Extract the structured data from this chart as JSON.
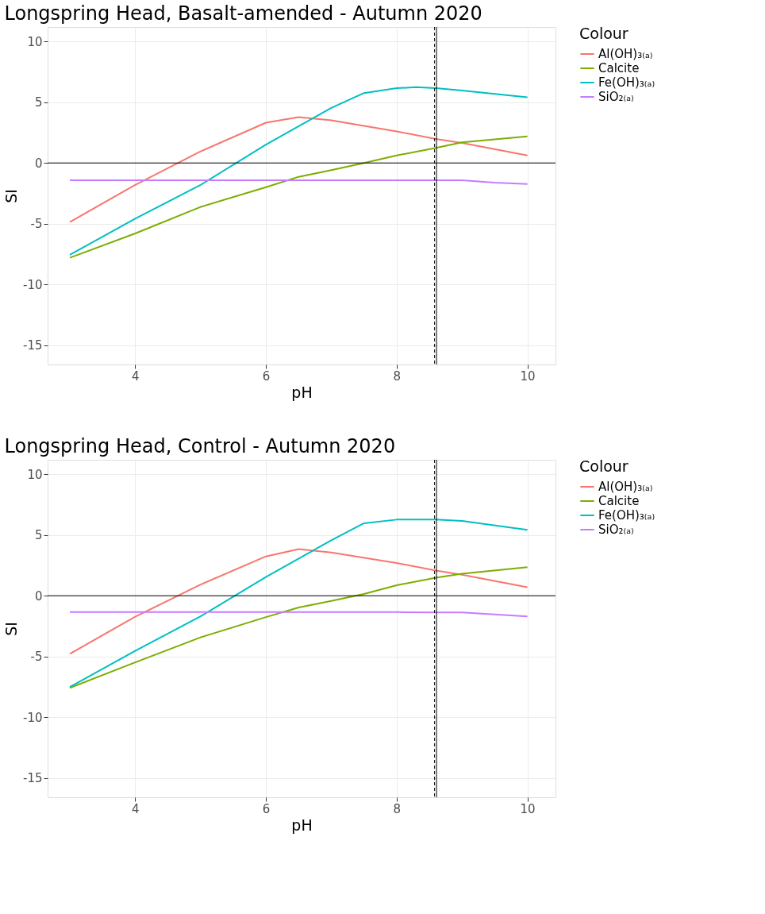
{
  "chart_data": [
    {
      "type": "line",
      "title": "Longspring Head, Basalt-amended - Autumn 2020",
      "xlabel": "pH",
      "ylabel": "SI",
      "legend_title": "Colour",
      "legend": "right",
      "grid": true,
      "line_style": "solid",
      "marker": "none",
      "xlim": [
        2.66,
        10.43
      ],
      "ylim": [
        -16.6,
        11.2
      ],
      "xticks": [
        4,
        6,
        8,
        10
      ],
      "yticks": [
        -15,
        -10,
        -5,
        0,
        5,
        10
      ],
      "series": [
        {
          "name": "Al(OH)₃₍ₐ₎",
          "color": "#f8766d",
          "x": [
            3,
            4,
            5,
            6,
            6.5,
            7,
            8,
            8.6,
            9,
            10
          ],
          "values": [
            -4.86,
            -1.81,
            0.95,
            3.32,
            3.78,
            3.51,
            2.6,
            1.97,
            1.65,
            0.62
          ]
        },
        {
          "name": "Calcite",
          "color": "#7cae00",
          "x": [
            3,
            4,
            5,
            6,
            6.5,
            7,
            7.5,
            8,
            8.6,
            9,
            10
          ],
          "values": [
            -7.81,
            -5.81,
            -3.62,
            -2.0,
            -1.14,
            -0.59,
            0,
            0.62,
            1.24,
            1.7,
            2.19
          ]
        },
        {
          "name": "Fe(OH)₃₍ₐ₎",
          "color": "#00bfc4",
          "x": [
            3,
            4,
            5,
            6,
            7,
            7.5,
            8,
            8.3,
            8.6,
            9,
            10
          ],
          "values": [
            -7.57,
            -4.59,
            -1.81,
            1.51,
            4.54,
            5.76,
            6.16,
            6.24,
            6.16,
            5.97,
            5.41
          ]
        },
        {
          "name": "SiO₂₍ₐ₎",
          "color": "#c77cff",
          "x": [
            3,
            9,
            9.5,
            10
          ],
          "values": [
            -1.43,
            -1.43,
            -1.62,
            -1.73
          ]
        }
      ],
      "ref_lines": [
        {
          "axis": "y",
          "value": 0,
          "color": "#000000",
          "line_style": "solid"
        },
        {
          "axis": "x",
          "value": 8.61,
          "color": "#000000",
          "line_style": "solid"
        },
        {
          "axis": "x",
          "value": 8.58,
          "color": "#000000",
          "line_style": "dashed"
        }
      ]
    },
    {
      "type": "line",
      "title": "Longspring Head, Control - Autumn 2020",
      "xlabel": "pH",
      "ylabel": "SI",
      "legend_title": "Colour",
      "legend": "right",
      "grid": true,
      "line_style": "solid",
      "marker": "none",
      "xlim": [
        2.66,
        10.43
      ],
      "ylim": [
        -16.6,
        11.2
      ],
      "xticks": [
        4,
        6,
        8,
        10
      ],
      "yticks": [
        -15,
        -10,
        -5,
        0,
        5,
        10
      ],
      "series": [
        {
          "name": "Al(OH)₃₍ₐ₎",
          "color": "#f8766d",
          "x": [
            3,
            4,
            5,
            6,
            6.5,
            7,
            8,
            8.6,
            9,
            10
          ],
          "values": [
            -4.78,
            -1.73,
            0.92,
            3.24,
            3.84,
            3.57,
            2.7,
            2.08,
            1.73,
            0.7
          ]
        },
        {
          "name": "Calcite",
          "color": "#7cae00",
          "x": [
            3,
            4,
            5,
            6,
            6.5,
            7,
            7.5,
            8,
            8.6,
            9,
            10
          ],
          "values": [
            -7.59,
            -5.49,
            -3.43,
            -1.76,
            -0.97,
            -0.43,
            0.14,
            0.86,
            1.49,
            1.81,
            2.35
          ]
        },
        {
          "name": "Fe(OH)₃₍ₐ₎",
          "color": "#00bfc4",
          "x": [
            3,
            4,
            5,
            6,
            7,
            7.5,
            8,
            8.6,
            9,
            10
          ],
          "values": [
            -7.51,
            -4.54,
            -1.7,
            1.54,
            4.57,
            5.97,
            6.27,
            6.27,
            6.16,
            5.43
          ]
        },
        {
          "name": "SiO₂₍ₐ₎",
          "color": "#c77cff",
          "x": [
            3,
            8,
            8.6,
            9,
            10
          ],
          "values": [
            -1.35,
            -1.35,
            -1.38,
            -1.38,
            -1.7
          ]
        }
      ],
      "ref_lines": [
        {
          "axis": "y",
          "value": 0,
          "color": "#000000",
          "line_style": "solid"
        },
        {
          "axis": "x",
          "value": 8.61,
          "color": "#000000",
          "line_style": "solid"
        },
        {
          "axis": "x",
          "value": 8.58,
          "color": "#000000",
          "line_style": "dashed"
        }
      ]
    }
  ]
}
